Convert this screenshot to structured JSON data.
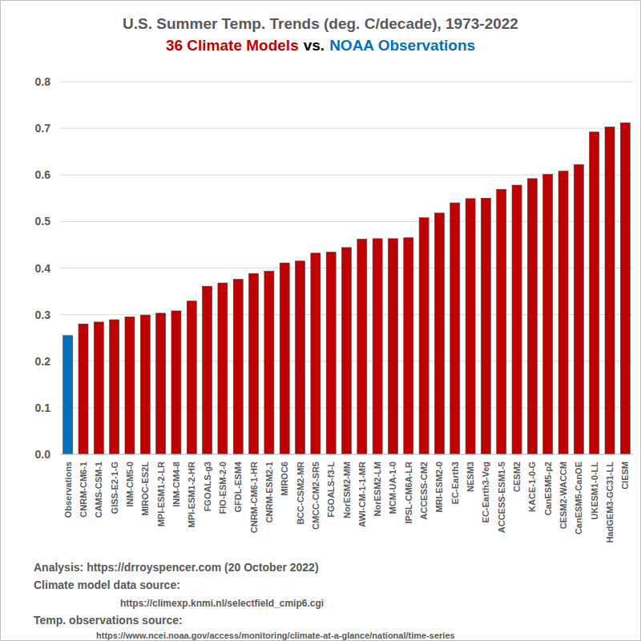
{
  "chart_data": {
    "type": "bar",
    "title": "U.S. Summer Temp. Trends (deg. C/decade), 1973-2022",
    "subtitle": [
      "36 Climate Models",
      "vs.",
      "NOAA Observations"
    ],
    "categories": [
      "Observations",
      "CNRM-CM6-1",
      "CAMS-CSM-1",
      "GISS-E2-1-G",
      "INM-CM5-0",
      "MIROC-ES2L",
      "MPI-ESM1-2-LR",
      "INM-CM4-8",
      "MPI-ESM1-2-HR",
      "FGOALS-g3",
      "FIO-ESM-2-0",
      "GFDL-ESM4",
      "CNRM-CM6-1-HR",
      "CNRM-ESM2-1",
      "MIROC6",
      "BCC-CSM2-MR",
      "CMCC-CM2-SR5",
      "FGOALS-f3-L",
      "NorESM2-MM",
      "AWI-CM-1-1-MR",
      "NorESM2-LM",
      "MCM-UA-1-0",
      "IPSL-CM6A-LR",
      "ACCESS-CM2",
      "MRI-ESM2-0",
      "EC-Earth3",
      "NESM3",
      "EC-Earth3-Veg",
      "ACCESS-ESM1-5",
      "CESM2",
      "KACE-1-0-G",
      "CanESM5-p2",
      "CESM2-WACCM",
      "CanESM5-CanOE",
      "UKESM1-0-LL",
      "HadGEM3-GC31-LL",
      "CIESM"
    ],
    "values": [
      0.255,
      0.28,
      0.284,
      0.289,
      0.295,
      0.299,
      0.303,
      0.308,
      0.329,
      0.361,
      0.368,
      0.376,
      0.388,
      0.393,
      0.411,
      0.415,
      0.432,
      0.434,
      0.444,
      0.462,
      0.463,
      0.463,
      0.465,
      0.508,
      0.518,
      0.54,
      0.549,
      0.55,
      0.569,
      0.578,
      0.592,
      0.601,
      0.608,
      0.622,
      0.692,
      0.703,
      0.712
    ],
    "colors": [
      "#0070c0",
      "#c00000",
      "#c00000",
      "#c00000",
      "#c00000",
      "#c00000",
      "#c00000",
      "#c00000",
      "#c00000",
      "#c00000",
      "#c00000",
      "#c00000",
      "#c00000",
      "#c00000",
      "#c00000",
      "#c00000",
      "#c00000",
      "#c00000",
      "#c00000",
      "#c00000",
      "#c00000",
      "#c00000",
      "#c00000",
      "#c00000",
      "#c00000",
      "#c00000",
      "#c00000",
      "#c00000",
      "#c00000",
      "#c00000",
      "#c00000",
      "#c00000",
      "#c00000",
      "#c00000",
      "#c00000",
      "#c00000",
      "#c00000"
    ],
    "ylim": [
      0,
      0.8
    ],
    "yticks": [
      {
        "value": 0,
        "label": "0.0"
      },
      0.1,
      0.2,
      0.3,
      0.4,
      0.5,
      0.6,
      0.7,
      0.8
    ],
    "grid": true,
    "annotations": [
      "Analysis: https://drroyspencer.com (20 October 2022)",
      "Climate model data source:",
      "https://climexp.knmi.nl/selectfield_cmip6.cgi",
      "Temp. observations source:",
      "https://www.ncei.noaa.gov/access/monitoring/climate-at-a-glance/national/time-series"
    ]
  }
}
